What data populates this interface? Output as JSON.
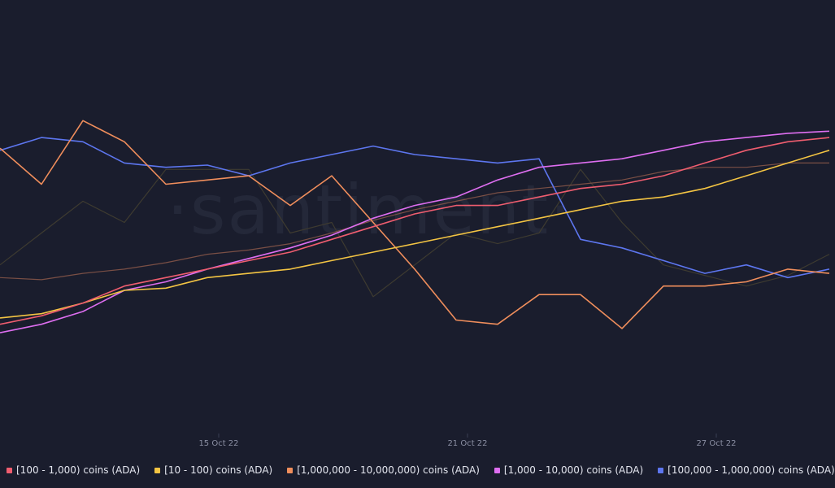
{
  "chart_data": {
    "type": "line",
    "watermark": "·santiment·",
    "x": [
      "10 Oct 22",
      "11 Oct 22",
      "12 Oct 22",
      "13 Oct 22",
      "14 Oct 22",
      "15 Oct 22",
      "16 Oct 22",
      "17 Oct 22",
      "18 Oct 22",
      "19 Oct 22",
      "20 Oct 22",
      "21 Oct 22",
      "22 Oct 22",
      "23 Oct 22",
      "24 Oct 22",
      "25 Oct 22",
      "26 Oct 22",
      "27 Oct 22",
      "28 Oct 22",
      "29 Oct 22",
      "30 Oct 22"
    ],
    "x_ticks": [
      "15 Oct 22",
      "21 Oct 22",
      "27 Oct 22"
    ],
    "series": [
      {
        "name": "[100 - 1,000) coins (ADA)",
        "color": "#ef5d6f",
        "values": [
          0.12,
          0.16,
          0.22,
          0.3,
          0.34,
          0.38,
          0.42,
          0.46,
          0.52,
          0.58,
          0.64,
          0.68,
          0.68,
          0.72,
          0.76,
          0.78,
          0.82,
          0.88,
          0.94,
          0.98,
          1.0
        ]
      },
      {
        "name": "[10 - 100) coins (ADA)",
        "color": "#f3c443",
        "values": [
          0.15,
          0.17,
          0.22,
          0.28,
          0.29,
          0.34,
          0.36,
          0.38,
          0.42,
          0.46,
          0.5,
          0.54,
          0.58,
          0.62,
          0.66,
          0.7,
          0.72,
          0.76,
          0.82,
          0.88,
          0.94
        ]
      },
      {
        "name": "[1,000,000 - 10,000,000) coins (ADA)",
        "color": "#f08e5c",
        "values": [
          0.95,
          0.78,
          1.08,
          0.98,
          0.78,
          0.8,
          0.82,
          0.68,
          0.82,
          0.6,
          0.38,
          0.14,
          0.12,
          0.26,
          0.26,
          0.1,
          0.3,
          0.3,
          0.32,
          0.38,
          0.36
        ]
      },
      {
        "name": "[1,000 - 10,000) coins (ADA)",
        "color": "#de6ef0",
        "values": [
          0.08,
          0.12,
          0.18,
          0.28,
          0.32,
          0.38,
          0.43,
          0.48,
          0.54,
          0.62,
          0.68,
          0.72,
          0.8,
          0.86,
          0.88,
          0.9,
          0.94,
          0.98,
          1.0,
          1.02,
          1.03
        ]
      },
      {
        "name": "[100,000  - 1,000,000) coins (ADA)",
        "color": "#5d76ef",
        "values": [
          0.94,
          1.0,
          0.98,
          0.88,
          0.86,
          0.87,
          0.82,
          0.88,
          0.92,
          0.96,
          0.92,
          0.9,
          0.88,
          0.9,
          0.52,
          0.48,
          0.42,
          0.36,
          0.4,
          0.34,
          0.38
        ]
      },
      {
        "name": "",
        "color": "#7a4f45",
        "values": [
          0.34,
          0.33,
          0.36,
          0.38,
          0.41,
          0.45,
          0.47,
          0.5,
          0.55,
          0.61,
          0.66,
          0.7,
          0.74,
          0.76,
          0.78,
          0.8,
          0.84,
          0.86,
          0.86,
          0.88,
          0.88
        ]
      },
      {
        "name": "",
        "color": "#3e3b30",
        "values": [
          0.4,
          0.55,
          0.7,
          0.6,
          0.85,
          0.85,
          0.85,
          0.55,
          0.6,
          0.25,
          0.4,
          0.55,
          0.5,
          0.55,
          0.85,
          0.6,
          0.4,
          0.35,
          0.3,
          0.35,
          0.45
        ]
      }
    ]
  },
  "legend": {
    "items": [
      {
        "label": "[100 - 1,000) coins (ADA)",
        "color": "#ef5d6f"
      },
      {
        "label": "[10 - 100) coins (ADA)",
        "color": "#f3c443"
      },
      {
        "label": "[1,000,000 - 10,000,000) coins (ADA)",
        "color": "#f08e5c"
      },
      {
        "label": "[1,000 - 10,000) coins (ADA)",
        "color": "#de6ef0"
      },
      {
        "label": "[100,000  - 1,000,000) coins (ADA)",
        "color": "#5d76ef"
      }
    ]
  }
}
